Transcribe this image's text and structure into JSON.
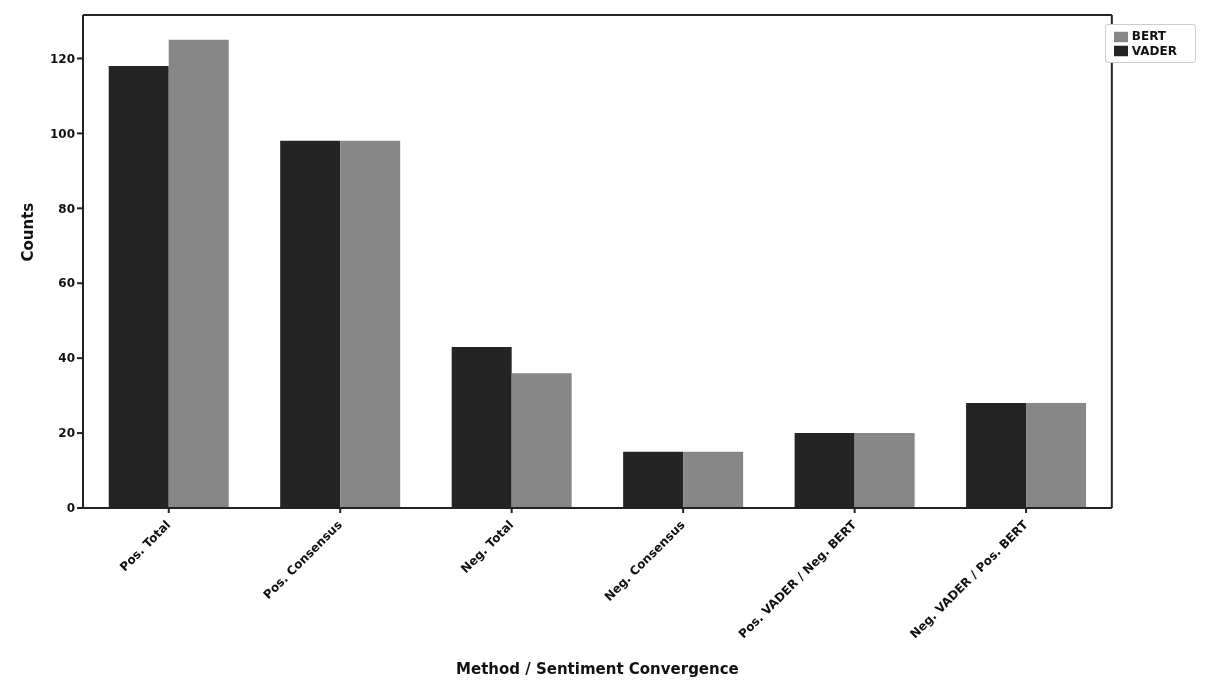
{
  "chart_data": {
    "type": "bar",
    "xlabel": "Method / Sentiment Convergence",
    "ylabel": "Counts",
    "categories": [
      "Pos. Total",
      "Pos. Consensus",
      "Neg. Total",
      "Neg. Consensus",
      "Pos. VADER / Neg. BERT",
      "Neg. VADER / Pos. BERT"
    ],
    "series": [
      {
        "name": "VADER",
        "color": "#242424",
        "values": [
          118,
          98,
          43,
          15,
          20,
          28
        ]
      },
      {
        "name": "BERT",
        "color": "#878787",
        "values": [
          125,
          98,
          36,
          15,
          20,
          28
        ]
      }
    ],
    "ylim": [
      0,
      131.6
    ],
    "yticks": [
      0,
      20,
      40,
      60,
      80,
      100,
      120
    ],
    "grid": false,
    "legend": "top right"
  }
}
